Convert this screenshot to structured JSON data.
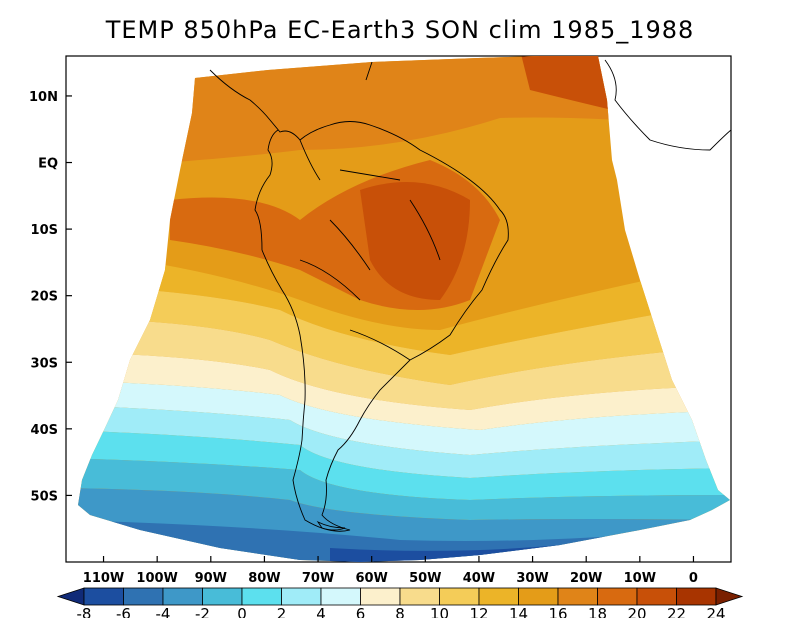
{
  "title": "TEMP 850hPa EC-Earth3 SON clim 1985_1988",
  "map": {
    "variable": "TEMP",
    "level": "850hPa",
    "region": "South America",
    "lon_range": [
      -117,
      7
    ],
    "lat_range": [
      -60,
      16
    ],
    "lat_ticks": [
      {
        "label": "10N",
        "lat": 10
      },
      {
        "label": "EQ",
        "lat": 0
      },
      {
        "label": "10S",
        "lat": -10
      },
      {
        "label": "20S",
        "lat": -20
      },
      {
        "label": "30S",
        "lat": -30
      },
      {
        "label": "40S",
        "lat": -40
      },
      {
        "label": "50S",
        "lat": -50
      }
    ],
    "lon_ticks": [
      {
        "label": "110W",
        "lon": -110
      },
      {
        "label": "100W",
        "lon": -100
      },
      {
        "label": "90W",
        "lon": -90
      },
      {
        "label": "80W",
        "lon": -80
      },
      {
        "label": "70W",
        "lon": -70
      },
      {
        "label": "60W",
        "lon": -60
      },
      {
        "label": "50W",
        "lon": -50
      },
      {
        "label": "40W",
        "lon": -40
      },
      {
        "label": "30W",
        "lon": -30
      },
      {
        "label": "20W",
        "lon": -20
      },
      {
        "label": "10W",
        "lon": -10
      },
      {
        "label": "0",
        "lon": 0
      }
    ]
  },
  "colorbar": {
    "labels": [
      "-8",
      "-6",
      "-4",
      "-2",
      "0",
      "2",
      "4",
      "6",
      "8",
      "10",
      "12",
      "14",
      "16",
      "18",
      "20",
      "22",
      "24"
    ],
    "colors": [
      "#102a78",
      "#1c4ea0",
      "#2f72b2",
      "#3e98c8",
      "#48bcd8",
      "#5ce0ee",
      "#a0ecf8",
      "#d4f8fc",
      "#fcf0cc",
      "#f8dc8c",
      "#f4cc58",
      "#ecb428",
      "#e49c18",
      "#e08418",
      "#d86a10",
      "#c85008",
      "#a83400",
      "#7a2000"
    ]
  }
}
